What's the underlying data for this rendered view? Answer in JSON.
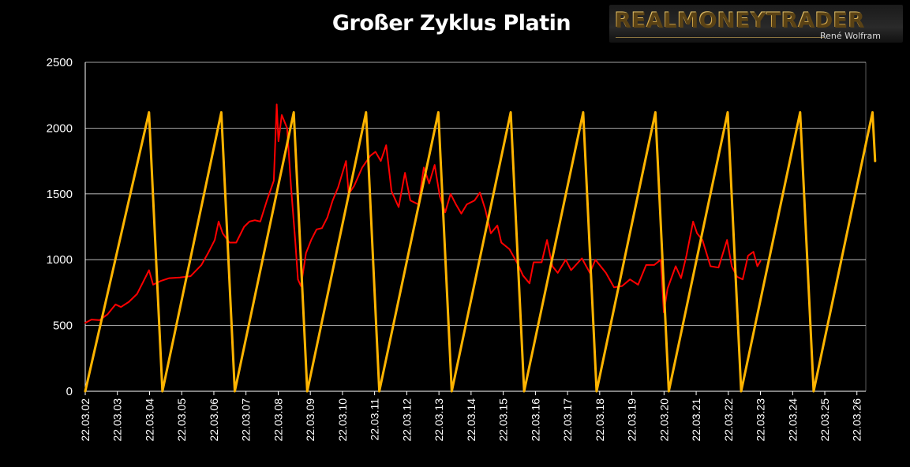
{
  "title": "Großer Zyklus Platin",
  "logo": {
    "brand": "REALMONEYTRADER",
    "author": "René Wolfram"
  },
  "colors": {
    "background": "#000000",
    "price": "#ff0000",
    "cycle": "#ffb400",
    "grid": "#ffffff"
  },
  "chart_data": {
    "type": "line",
    "title": "Großer Zyklus Platin",
    "xlabel": "",
    "ylabel": "",
    "ylim": [
      0,
      2500
    ],
    "yticks": [
      0,
      500,
      1000,
      1500,
      2000,
      2500
    ],
    "grid": true,
    "legend": "none",
    "x_axis": {
      "type": "date",
      "range": [
        "2002-03-22",
        "2026-07-01"
      ],
      "tick_labels": [
        "22.03.02",
        "22.03.03",
        "22.03.04",
        "22.03.05",
        "22.03.06",
        "22.03.07",
        "22.03.08",
        "22.03.09",
        "22.03.10",
        "22.03.11",
        "22.03.12",
        "22.03.13",
        "22.03.14",
        "22.03.15",
        "22.03.16",
        "22.03.17",
        "22.03.18",
        "22.03.19",
        "22.03.20",
        "22.03.21",
        "22.03.22",
        "22.03.23",
        "22.03.24",
        "22.03.25",
        "22.03.26"
      ]
    },
    "series": [
      {
        "color": "#ff0000",
        "points": [
          [
            "2002-03-22",
            520
          ],
          [
            "2002-06-01",
            545
          ],
          [
            "2002-09-01",
            540
          ],
          [
            "2002-12-01",
            585
          ],
          [
            "2003-03-01",
            660
          ],
          [
            "2003-05-01",
            640
          ],
          [
            "2003-08-01",
            680
          ],
          [
            "2003-11-01",
            740
          ],
          [
            "2004-01-15",
            840
          ],
          [
            "2004-03-15",
            920
          ],
          [
            "2004-05-01",
            810
          ],
          [
            "2004-08-01",
            840
          ],
          [
            "2004-11-01",
            860
          ],
          [
            "2005-03-01",
            865
          ],
          [
            "2005-07-01",
            875
          ],
          [
            "2005-11-01",
            960
          ],
          [
            "2006-01-15",
            1050
          ],
          [
            "2006-04-01",
            1150
          ],
          [
            "2006-05-15",
            1290
          ],
          [
            "2006-07-01",
            1200
          ],
          [
            "2006-09-15",
            1130
          ],
          [
            "2006-12-01",
            1130
          ],
          [
            "2007-03-01",
            1250
          ],
          [
            "2007-05-01",
            1290
          ],
          [
            "2007-07-01",
            1300
          ],
          [
            "2007-09-01",
            1290
          ],
          [
            "2007-11-15",
            1450
          ],
          [
            "2008-02-01",
            1600
          ],
          [
            "2008-03-05",
            2180
          ],
          [
            "2008-03-25",
            1900
          ],
          [
            "2008-05-01",
            2100
          ],
          [
            "2008-06-01",
            2050
          ],
          [
            "2008-07-01",
            2000
          ],
          [
            "2008-08-15",
            1550
          ],
          [
            "2008-10-01",
            1150
          ],
          [
            "2008-11-01",
            850
          ],
          [
            "2008-12-05",
            800
          ],
          [
            "2009-02-01",
            1050
          ],
          [
            "2009-04-01",
            1150
          ],
          [
            "2009-06-01",
            1230
          ],
          [
            "2009-08-01",
            1240
          ],
          [
            "2009-10-01",
            1320
          ],
          [
            "2009-12-01",
            1450
          ],
          [
            "2010-02-01",
            1550
          ],
          [
            "2010-05-01",
            1750
          ],
          [
            "2010-06-01",
            1500
          ],
          [
            "2010-08-01",
            1560
          ],
          [
            "2010-11-01",
            1700
          ],
          [
            "2011-02-01",
            1790
          ],
          [
            "2011-04-01",
            1820
          ],
          [
            "2011-06-01",
            1750
          ],
          [
            "2011-08-01",
            1870
          ],
          [
            "2011-10-01",
            1520
          ],
          [
            "2011-12-20",
            1400
          ],
          [
            "2012-03-01",
            1660
          ],
          [
            "2012-05-01",
            1450
          ],
          [
            "2012-08-01",
            1420
          ],
          [
            "2012-10-01",
            1700
          ],
          [
            "2012-12-01",
            1580
          ],
          [
            "2013-02-01",
            1720
          ],
          [
            "2013-04-01",
            1480
          ],
          [
            "2013-06-01",
            1360
          ],
          [
            "2013-08-01",
            1500
          ],
          [
            "2013-10-01",
            1420
          ],
          [
            "2013-12-01",
            1350
          ],
          [
            "2014-02-01",
            1420
          ],
          [
            "2014-05-01",
            1450
          ],
          [
            "2014-07-01",
            1510
          ],
          [
            "2014-09-01",
            1380
          ],
          [
            "2014-11-01",
            1200
          ],
          [
            "2015-01-15",
            1260
          ],
          [
            "2015-03-01",
            1130
          ],
          [
            "2015-06-01",
            1080
          ],
          [
            "2015-09-01",
            970
          ],
          [
            "2015-11-01",
            880
          ],
          [
            "2016-01-15",
            820
          ],
          [
            "2016-03-01",
            980
          ],
          [
            "2016-06-01",
            980
          ],
          [
            "2016-08-01",
            1150
          ],
          [
            "2016-10-01",
            950
          ],
          [
            "2016-12-01",
            900
          ],
          [
            "2017-03-01",
            1000
          ],
          [
            "2017-05-01",
            920
          ],
          [
            "2017-09-01",
            1010
          ],
          [
            "2017-12-01",
            900
          ],
          [
            "2018-02-01",
            1000
          ],
          [
            "2018-06-01",
            900
          ],
          [
            "2018-09-01",
            790
          ],
          [
            "2018-12-01",
            800
          ],
          [
            "2019-03-01",
            850
          ],
          [
            "2019-06-01",
            810
          ],
          [
            "2019-09-01",
            960
          ],
          [
            "2019-12-01",
            960
          ],
          [
            "2020-02-15",
            1000
          ],
          [
            "2020-03-20",
            600
          ],
          [
            "2020-05-01",
            780
          ],
          [
            "2020-08-01",
            950
          ],
          [
            "2020-10-01",
            860
          ],
          [
            "2020-12-01",
            1030
          ],
          [
            "2021-02-15",
            1290
          ],
          [
            "2021-04-01",
            1200
          ],
          [
            "2021-06-01",
            1150
          ],
          [
            "2021-09-01",
            950
          ],
          [
            "2021-12-01",
            940
          ],
          [
            "2022-03-08",
            1150
          ],
          [
            "2022-05-01",
            950
          ],
          [
            "2022-07-01",
            870
          ],
          [
            "2022-09-01",
            850
          ],
          [
            "2022-11-01",
            1030
          ],
          [
            "2023-01-01",
            1060
          ],
          [
            "2023-02-15",
            950
          ],
          [
            "2023-03-22",
            990
          ]
        ]
      },
      {
        "color": "#ffb400",
        "points": [
          [
            "2002-03-22",
            0
          ],
          [
            "2004-03-15",
            2120
          ],
          [
            "2004-08-15",
            0
          ],
          [
            "2006-06-15",
            2120
          ],
          [
            "2006-11-15",
            0
          ],
          [
            "2008-09-15",
            2120
          ],
          [
            "2009-02-15",
            0
          ],
          [
            "2010-12-15",
            2120
          ],
          [
            "2011-05-15",
            0
          ],
          [
            "2013-03-15",
            2120
          ],
          [
            "2013-08-15",
            0
          ],
          [
            "2015-06-15",
            2120
          ],
          [
            "2015-11-15",
            0
          ],
          [
            "2017-09-15",
            2120
          ],
          [
            "2018-02-15",
            0
          ],
          [
            "2019-12-15",
            2120
          ],
          [
            "2020-05-15",
            0
          ],
          [
            "2022-03-15",
            2120
          ],
          [
            "2022-08-15",
            0
          ],
          [
            "2024-06-15",
            2120
          ],
          [
            "2024-11-15",
            0
          ],
          [
            "2026-09-15",
            2120
          ],
          [
            "2026-10-15",
            1750
          ]
        ]
      }
    ]
  }
}
